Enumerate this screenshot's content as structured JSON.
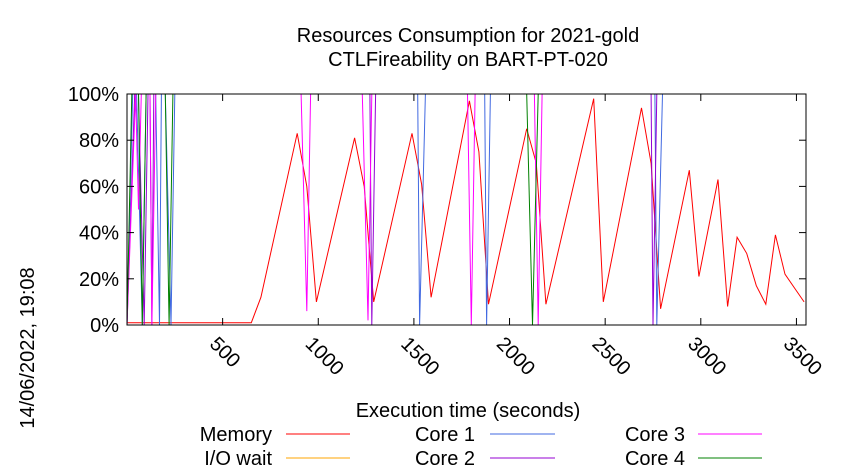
{
  "chart_data": {
    "type": "line",
    "title": "Resources Consumption for 2021-gold",
    "subtitle": "CTLFireability on BART-PT-020",
    "xlabel": "Execution time (seconds)",
    "ylabel": "",
    "side_label": "14/06/2022, 19:08",
    "xlim": [
      0,
      3550
    ],
    "ylim": [
      0,
      100
    ],
    "xticks": [
      500,
      1000,
      1500,
      2000,
      2500,
      3000,
      3500
    ],
    "yticks": [
      0,
      20,
      40,
      60,
      80,
      100
    ],
    "ytick_labels": [
      "0%",
      "20%",
      "40%",
      "60%",
      "80%",
      "100%"
    ],
    "legend": {
      "placement": "bottom"
    },
    "series": [
      {
        "name": "Memory",
        "color": "#ff0000",
        "points": [
          [
            0,
            1
          ],
          [
            650,
            1
          ],
          [
            700,
            12
          ],
          [
            890,
            83
          ],
          [
            940,
            60
          ],
          [
            990,
            10
          ],
          [
            1190,
            81
          ],
          [
            1240,
            60
          ],
          [
            1290,
            10
          ],
          [
            1490,
            83
          ],
          [
            1540,
            61
          ],
          [
            1590,
            12
          ],
          [
            1790,
            97
          ],
          [
            1840,
            75
          ],
          [
            1890,
            9
          ],
          [
            2090,
            85
          ],
          [
            2140,
            70
          ],
          [
            2190,
            9
          ],
          [
            2440,
            98
          ],
          [
            2490,
            10
          ],
          [
            2690,
            94
          ],
          [
            2740,
            70
          ],
          [
            2790,
            7
          ],
          [
            2940,
            67
          ],
          [
            2990,
            21
          ],
          [
            3090,
            63
          ],
          [
            3140,
            8
          ],
          [
            3190,
            38
          ],
          [
            3240,
            31
          ],
          [
            3290,
            17
          ],
          [
            3340,
            9
          ],
          [
            3390,
            39
          ],
          [
            3440,
            22
          ],
          [
            3490,
            16
          ],
          [
            3540,
            10
          ]
        ]
      },
      {
        "name": "I/O wait",
        "color": "#ffa500",
        "points": [
          [
            0,
            0
          ],
          [
            3540,
            0
          ]
        ]
      },
      {
        "name": "Core 1",
        "color": "#4169e1",
        "points": [
          [
            0,
            0
          ],
          [
            30,
            100
          ],
          [
            50,
            100
          ],
          [
            80,
            0
          ],
          [
            100,
            100
          ],
          [
            150,
            100
          ],
          [
            170,
            0
          ],
          [
            180,
            100
          ],
          [
            200,
            100
          ],
          [
            230,
            0
          ],
          [
            250,
            100
          ],
          [
            1520,
            100
          ],
          [
            1530,
            0
          ],
          [
            1560,
            100
          ],
          [
            1870,
            100
          ],
          [
            1880,
            0
          ],
          [
            1900,
            100
          ],
          [
            2760,
            100
          ],
          [
            2770,
            0
          ],
          [
            2800,
            100
          ],
          [
            3540,
            100
          ]
        ]
      },
      {
        "name": "Core 2",
        "color": "#9400d3",
        "points": [
          [
            0,
            0
          ],
          [
            40,
            100
          ],
          [
            60,
            100
          ],
          [
            90,
            0
          ],
          [
            110,
            100
          ],
          [
            120,
            100
          ],
          [
            130,
            0
          ],
          [
            140,
            100
          ],
          [
            700,
            100
          ],
          [
            1270,
            100
          ],
          [
            1280,
            0
          ],
          [
            1300,
            100
          ],
          [
            2740,
            100
          ],
          [
            2750,
            0
          ],
          [
            2770,
            100
          ],
          [
            3540,
            100
          ]
        ]
      },
      {
        "name": "Core 3",
        "color": "#ff00ff",
        "points": [
          [
            0,
            0
          ],
          [
            45,
            100
          ],
          [
            60,
            50
          ],
          [
            75,
            100
          ],
          [
            120,
            100
          ],
          [
            130,
            0
          ],
          [
            150,
            100
          ],
          [
            700,
            100
          ],
          [
            910,
            100
          ],
          [
            940,
            6
          ],
          [
            960,
            100
          ],
          [
            1230,
            100
          ],
          [
            1260,
            2
          ],
          [
            1280,
            100
          ],
          [
            1780,
            100
          ],
          [
            1800,
            0
          ],
          [
            1820,
            100
          ],
          [
            2130,
            100
          ],
          [
            2150,
            0
          ],
          [
            2170,
            100
          ],
          [
            3540,
            100
          ]
        ]
      },
      {
        "name": "Core 4",
        "color": "#008000",
        "points": [
          [
            0,
            0
          ],
          [
            25,
            100
          ],
          [
            60,
            100
          ],
          [
            80,
            0
          ],
          [
            100,
            100
          ],
          [
            200,
            100
          ],
          [
            220,
            0
          ],
          [
            240,
            100
          ],
          [
            700,
            100
          ],
          [
            2090,
            100
          ],
          [
            2120,
            0
          ],
          [
            2150,
            100
          ],
          [
            3540,
            100
          ]
        ]
      }
    ]
  }
}
